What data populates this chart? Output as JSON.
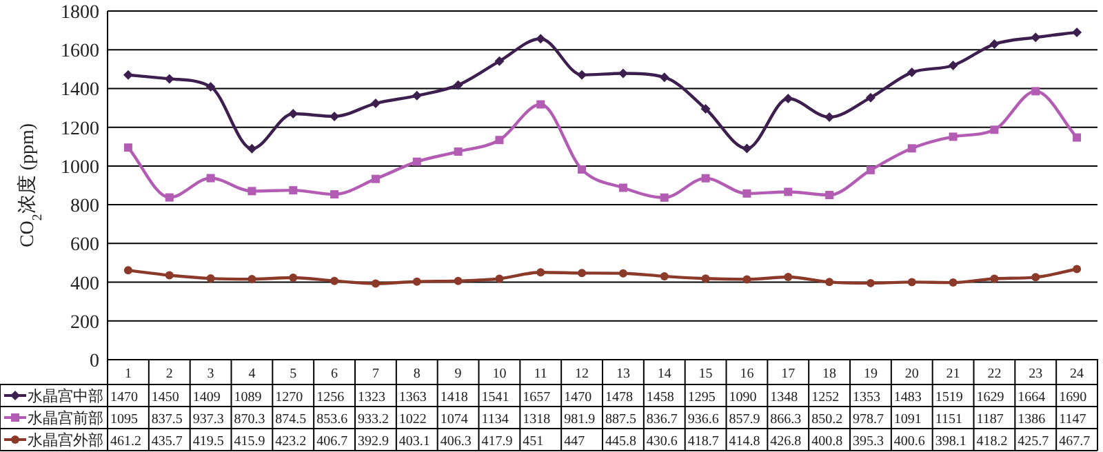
{
  "chart_data": {
    "type": "line",
    "ylabel": "CO$_{2}$浓度 (ppm)",
    "categories": [
      "1",
      "2",
      "3",
      "4",
      "5",
      "6",
      "7",
      "8",
      "9",
      "10",
      "11",
      "12",
      "13",
      "14",
      "15",
      "16",
      "17",
      "18",
      "19",
      "20",
      "21",
      "22",
      "23",
      "24"
    ],
    "ylim": [
      0,
      1800
    ],
    "yticks": [
      0,
      200,
      400,
      600,
      800,
      1000,
      1200,
      1400,
      1600,
      1800
    ],
    "grid": "y",
    "legend": "bottom",
    "data_labels": true,
    "series": [
      {
        "name": "水晶宫中部",
        "color": "#3d1f4f",
        "marker": "diamond",
        "values": [
          1470,
          1450,
          1409,
          1089,
          1270,
          1256,
          1323,
          1363,
          1418,
          1541,
          1657,
          1470,
          1478,
          1458,
          1295,
          1090,
          1348,
          1252,
          1353,
          1483,
          1519,
          1629,
          1664,
          1690
        ]
      },
      {
        "name": "水晶宫前部",
        "color": "#b35cb3",
        "marker": "square",
        "values": [
          1095,
          837.5,
          937.3,
          870.3,
          874.5,
          853.6,
          933.2,
          1022,
          1074,
          1134,
          1318,
          981.9,
          887.5,
          836.7,
          936.6,
          857.9,
          866.3,
          850.2,
          978.7,
          1091,
          1151,
          1187,
          1386,
          1147
        ]
      },
      {
        "name": "水晶宫外部",
        "color": "#8b3a2a",
        "marker": "circle",
        "values": [
          461.2,
          435.7,
          419.5,
          415.9,
          423.2,
          406.7,
          392.9,
          403.1,
          406.3,
          417.9,
          451,
          447,
          445.8,
          430.6,
          418.7,
          414.8,
          426.8,
          400.8,
          395.3,
          400.6,
          398.1,
          418.2,
          425.7,
          467.7
        ]
      }
    ]
  }
}
